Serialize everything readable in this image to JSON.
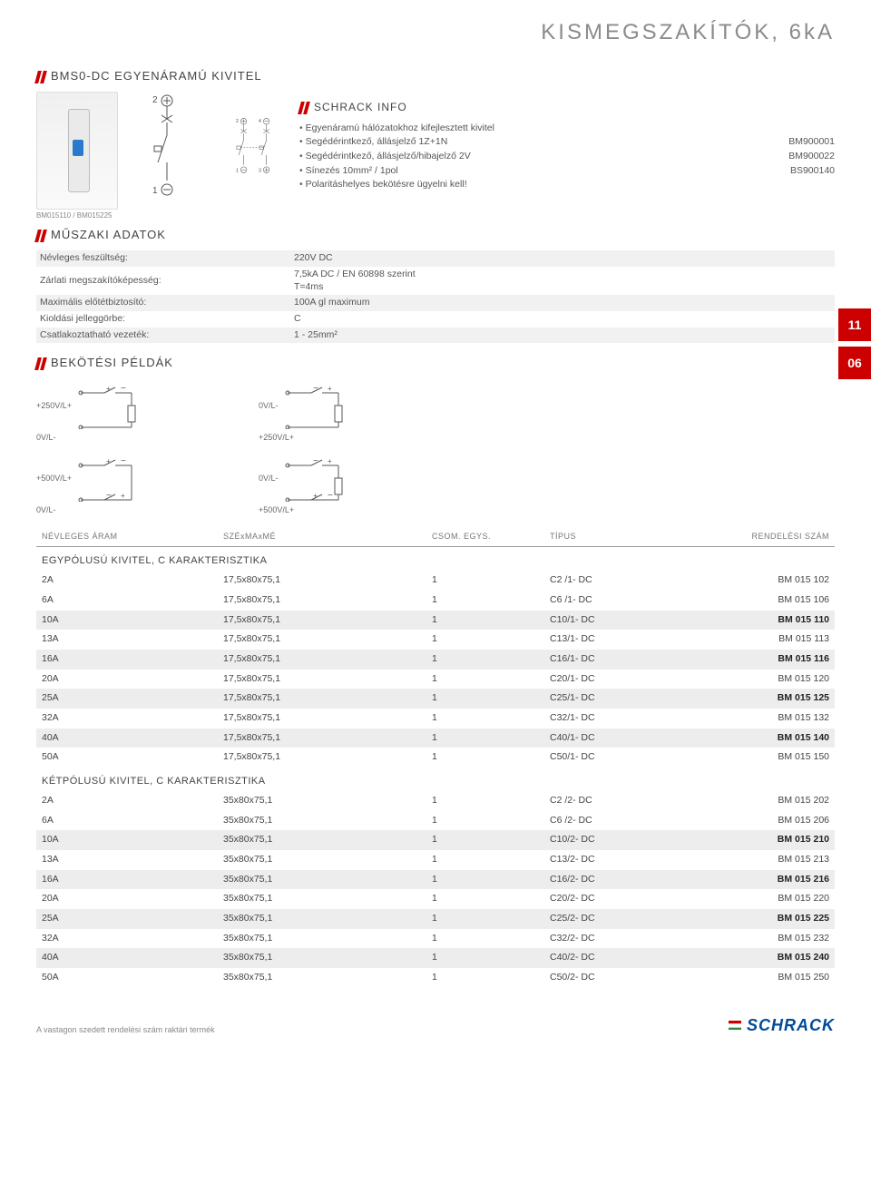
{
  "page_title": "KISMEGSZAKÍTÓK, 6kA",
  "section1_title": "BMS0-DC EGYENÁRAMÚ KIVITEL",
  "caption": "BM015110 / BM015225",
  "schrack_info_title": "SCHRACK INFO",
  "info": [
    {
      "text": "Egyenáramú hálózatokhoz kifejlesztett kivitel",
      "code": ""
    },
    {
      "text": "Segédérintkező, állásjelző 1Z+1N",
      "code": "BM900001"
    },
    {
      "text": "Segédérintkező, állásjelző/hibajelző 2V",
      "code": "BM900022"
    },
    {
      "text": "Sínezés 10mm² / 1pol",
      "code": "BS900140"
    },
    {
      "text": "Polaritáshelyes bekötésre ügyelni kell!",
      "code": ""
    }
  ],
  "tech_title": "MŰSZAKI ADATOK",
  "tech_rows": [
    [
      "Névleges feszültség:",
      "220V DC"
    ],
    [
      "Zárlati megszakítóképesség:",
      "7,5kA DC / EN 60898 szerint\nT=4ms"
    ],
    [
      "Maximális előtétbiztosító:",
      "100A gl maximum"
    ],
    [
      "Kioldási jelleggörbe:",
      "C"
    ],
    [
      "Csatlakoztatható vezeték:",
      "1 - 25mm²"
    ]
  ],
  "wiring_title": "BEKÖTÉSI PÉLDÁK",
  "wiring_labels": {
    "a1": "+250V/L+",
    "a2": "0V/L-",
    "a3": "0V/L-",
    "a4": "+250V/L+",
    "b1": "+500V/L+",
    "b2": "0V/L-",
    "b3": "0V/L-",
    "b4": "+500V/L+"
  },
  "side_tabs": [
    "11",
    "06"
  ],
  "table_headers": [
    "NÉVLEGES ÁRAM",
    "SZÉxMAxMÉ",
    "CSOM. EGYS.",
    "TÍPUS",
    "RENDELÉSI SZÁM"
  ],
  "group1": "EGYPÓLUSÚ KIVITEL, C KARAKTERISZTIKA",
  "rows1": [
    {
      "a": "2A",
      "b": "17,5x80x75,1",
      "c": "1",
      "d": "C2 /1- DC",
      "e": "BM 015 102",
      "s": false,
      "bold": false
    },
    {
      "a": "6A",
      "b": "17,5x80x75,1",
      "c": "1",
      "d": "C6 /1- DC",
      "e": "BM 015 106",
      "s": false,
      "bold": false
    },
    {
      "a": "10A",
      "b": "17,5x80x75,1",
      "c": "1",
      "d": "C10/1- DC",
      "e": "BM 015 110",
      "s": true,
      "bold": true
    },
    {
      "a": "13A",
      "b": "17,5x80x75,1",
      "c": "1",
      "d": "C13/1- DC",
      "e": "BM 015 113",
      "s": false,
      "bold": false
    },
    {
      "a": "16A",
      "b": "17,5x80x75,1",
      "c": "1",
      "d": "C16/1- DC",
      "e": "BM 015 116",
      "s": true,
      "bold": true
    },
    {
      "a": "20A",
      "b": "17,5x80x75,1",
      "c": "1",
      "d": "C20/1- DC",
      "e": "BM 015 120",
      "s": false,
      "bold": false
    },
    {
      "a": "25A",
      "b": "17,5x80x75,1",
      "c": "1",
      "d": "C25/1- DC",
      "e": "BM 015 125",
      "s": true,
      "bold": true
    },
    {
      "a": "32A",
      "b": "17,5x80x75,1",
      "c": "1",
      "d": "C32/1- DC",
      "e": "BM 015 132",
      "s": false,
      "bold": false
    },
    {
      "a": "40A",
      "b": "17,5x80x75,1",
      "c": "1",
      "d": "C40/1- DC",
      "e": "BM 015 140",
      "s": true,
      "bold": true
    },
    {
      "a": "50A",
      "b": "17,5x80x75,1",
      "c": "1",
      "d": "C50/1- DC",
      "e": "BM 015 150",
      "s": false,
      "bold": false
    }
  ],
  "group2": "KÉTPÓLUSÚ KIVITEL, C KARAKTERISZTIKA",
  "rows2": [
    {
      "a": "2A",
      "b": "35x80x75,1",
      "c": "1",
      "d": "C2 /2- DC",
      "e": "BM 015 202",
      "s": false,
      "bold": false
    },
    {
      "a": "6A",
      "b": "35x80x75,1",
      "c": "1",
      "d": "C6 /2- DC",
      "e": "BM 015 206",
      "s": false,
      "bold": false
    },
    {
      "a": "10A",
      "b": "35x80x75,1",
      "c": "1",
      "d": "C10/2- DC",
      "e": "BM 015 210",
      "s": true,
      "bold": true
    },
    {
      "a": "13A",
      "b": "35x80x75,1",
      "c": "1",
      "d": "C13/2- DC",
      "e": "BM 015 213",
      "s": false,
      "bold": false
    },
    {
      "a": "16A",
      "b": "35x80x75,1",
      "c": "1",
      "d": "C16/2- DC",
      "e": "BM 015 216",
      "s": true,
      "bold": true
    },
    {
      "a": "20A",
      "b": "35x80x75,1",
      "c": "1",
      "d": "C20/2- DC",
      "e": "BM 015 220",
      "s": false,
      "bold": false
    },
    {
      "a": "25A",
      "b": "35x80x75,1",
      "c": "1",
      "d": "C25/2- DC",
      "e": "BM 015 225",
      "s": true,
      "bold": true
    },
    {
      "a": "32A",
      "b": "35x80x75,1",
      "c": "1",
      "d": "C32/2- DC",
      "e": "BM 015 232",
      "s": false,
      "bold": false
    },
    {
      "a": "40A",
      "b": "35x80x75,1",
      "c": "1",
      "d": "C40/2- DC",
      "e": "BM 015 240",
      "s": true,
      "bold": true
    },
    {
      "a": "50A",
      "b": "35x80x75,1",
      "c": "1",
      "d": "C50/2- DC",
      "e": "BM 015 250",
      "s": false,
      "bold": false
    }
  ],
  "footnote": "A vastagon szedett rendelési szám raktári termék",
  "logo_text": "SCHRACK",
  "colors": {
    "accent": "#cc0000",
    "text": "#444444",
    "muted": "#888888",
    "shade": "#ededed",
    "logo_blue": "#004a99"
  }
}
